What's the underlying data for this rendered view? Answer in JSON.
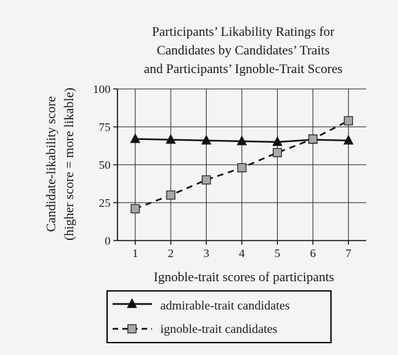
{
  "chart_data": {
    "type": "line",
    "title": [
      "Participants’ Likability Ratings for",
      "Candidates by Candidates’ Traits",
      "and Participants’ Ignoble-Trait Scores"
    ],
    "xlabel": "Ignoble-trait scores of participants",
    "ylabel": [
      "Candidate-likability score",
      "(higher score = more likable)"
    ],
    "x": [
      1,
      2,
      3,
      4,
      5,
      6,
      7
    ],
    "xlim": [
      0.5,
      7.5
    ],
    "ylim": [
      0,
      100
    ],
    "x_ticks": [
      "1",
      "2",
      "3",
      "4",
      "5",
      "6",
      "7"
    ],
    "y_ticks": [
      0,
      25,
      50,
      75,
      100
    ],
    "grid": true,
    "legend_position": "bottom",
    "series": [
      {
        "name": "admirable-trait candidates",
        "values": [
          67,
          66.5,
          66,
          65.5,
          65,
          66.5,
          66
        ],
        "line_style": "solid",
        "marker": "triangle",
        "color": "#111111"
      },
      {
        "name": "ignoble-trait candidates",
        "values": [
          21,
          30,
          40,
          48,
          58,
          67,
          79
        ],
        "line_style": "dashed",
        "marker": "square",
        "color": "#111111",
        "marker_fill": "#a8a8a8"
      }
    ]
  }
}
